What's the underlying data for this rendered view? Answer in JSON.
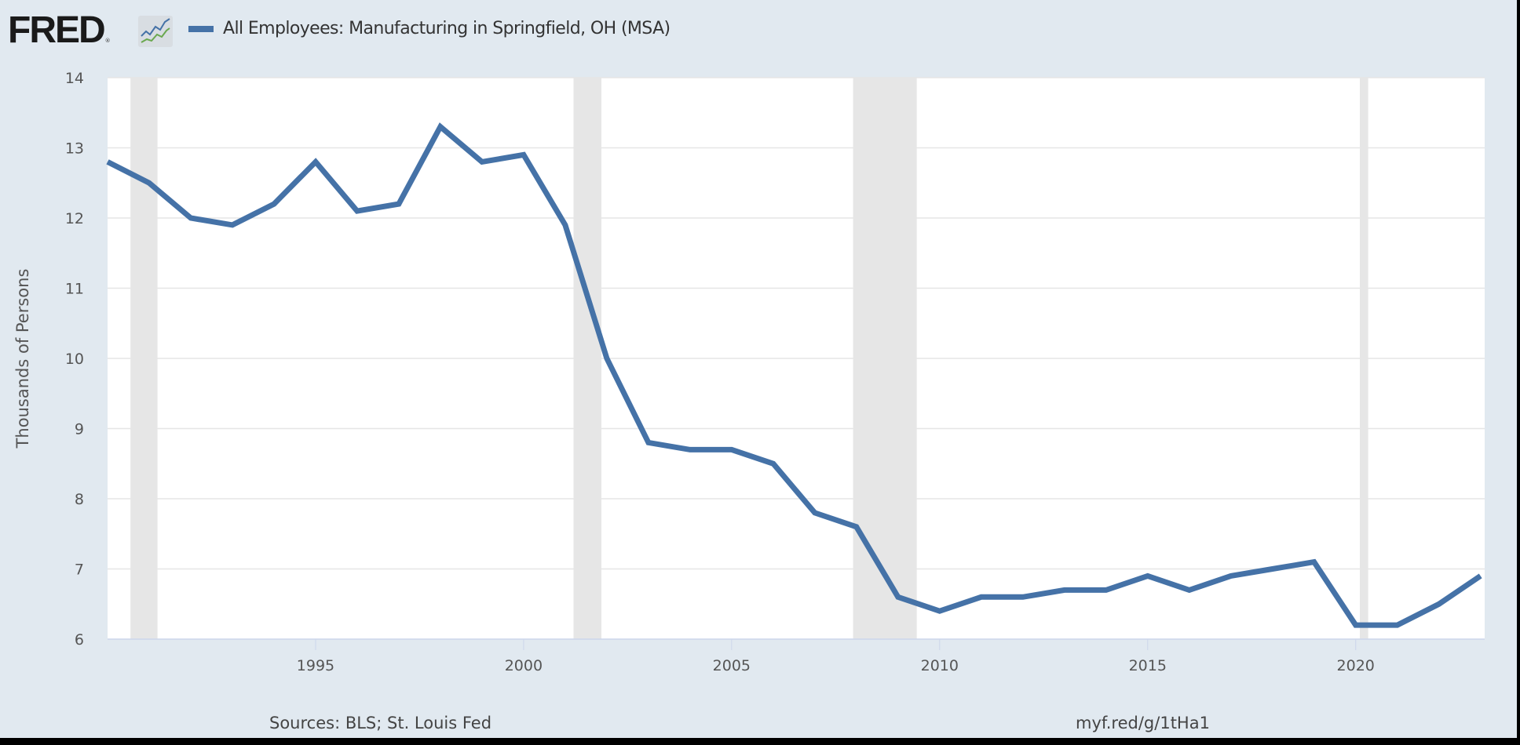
{
  "logo": {
    "text": "FRED",
    "reg": "®"
  },
  "legend": {
    "label": "All Employees: Manufacturing in Springfield, OH (MSA)",
    "color": "#4572a7"
  },
  "footer": {
    "source": "Sources: BLS; St. Louis Fed",
    "url": "myf.red/g/1tHa1"
  },
  "chart_data": {
    "type": "line",
    "title": "All Employees: Manufacturing in Springfield, OH (MSA)",
    "xlabel": "",
    "ylabel": "Thousands of Persons",
    "xlim": [
      1990,
      2023.1
    ],
    "ylim": [
      6,
      14
    ],
    "grid": true,
    "legend_position": "top-left",
    "yticks": [
      6,
      7,
      8,
      9,
      10,
      11,
      12,
      13,
      14
    ],
    "xticks": [
      1995,
      2000,
      2005,
      2010,
      2015,
      2020
    ],
    "recessions": [
      [
        1990.55,
        1991.2
      ],
      [
        2001.2,
        2001.87
      ],
      [
        2007.92,
        2009.45
      ],
      [
        2020.1,
        2020.3
      ]
    ],
    "series": [
      {
        "name": "All Employees: Manufacturing in Springfield, OH (MSA)",
        "color": "#4572a7",
        "x": [
          1990,
          1991,
          1992,
          1993,
          1994,
          1995,
          1996,
          1997,
          1998,
          1999,
          2000,
          2001,
          2002,
          2003,
          2004,
          2005,
          2006,
          2007,
          2008,
          2009,
          2010,
          2011,
          2012,
          2013,
          2014,
          2015,
          2016,
          2017,
          2018,
          2019,
          2020,
          2021,
          2022,
          2023
        ],
        "values": [
          12.8,
          12.5,
          12.0,
          11.9,
          12.2,
          12.8,
          12.1,
          12.2,
          13.3,
          12.8,
          12.9,
          11.9,
          10.0,
          8.8,
          8.7,
          8.7,
          8.5,
          7.8,
          7.6,
          6.6,
          6.4,
          6.6,
          6.6,
          6.7,
          6.7,
          6.9,
          6.7,
          6.9,
          7.0,
          7.1,
          6.2,
          6.2,
          6.5,
          6.9
        ]
      }
    ]
  }
}
